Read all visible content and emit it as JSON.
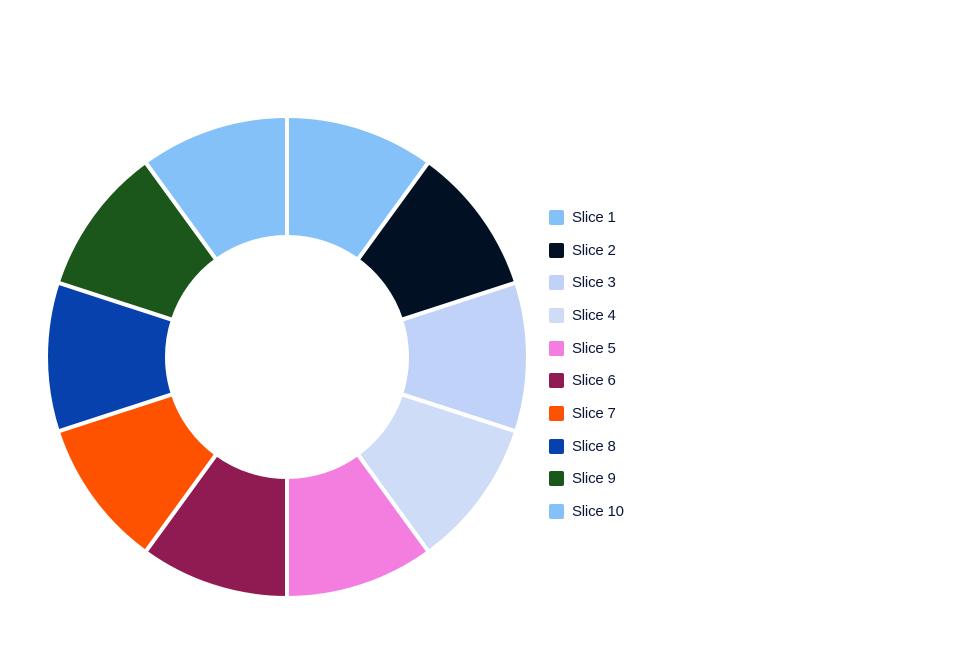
{
  "chart_data": {
    "type": "pie",
    "variant": "donut",
    "title": "",
    "categories": [
      "Slice 1",
      "Slice 2",
      "Slice 3",
      "Slice 4",
      "Slice 5",
      "Slice 6",
      "Slice 7",
      "Slice 8",
      "Slice 9",
      "Slice 10"
    ],
    "values": [
      10,
      10,
      10,
      10,
      10,
      10,
      10,
      10,
      10,
      10
    ],
    "colors": [
      "#84c1f8",
      "#021024",
      "#c0d2f8",
      "#cfdcf8",
      "#f47de0",
      "#901b52",
      "#ff5201",
      "#0641ad",
      "#1b561b",
      "#84c1f8"
    ],
    "start_angle": "top",
    "direction": "clockwise",
    "legend_position": "right"
  },
  "legend": {
    "items": [
      {
        "label": "Slice 1"
      },
      {
        "label": "Slice 2"
      },
      {
        "label": "Slice 3"
      },
      {
        "label": "Slice 4"
      },
      {
        "label": "Slice 5"
      },
      {
        "label": "Slice 6"
      },
      {
        "label": "Slice 7"
      },
      {
        "label": "Slice 8"
      },
      {
        "label": "Slice 9"
      },
      {
        "label": "Slice 10"
      }
    ]
  }
}
